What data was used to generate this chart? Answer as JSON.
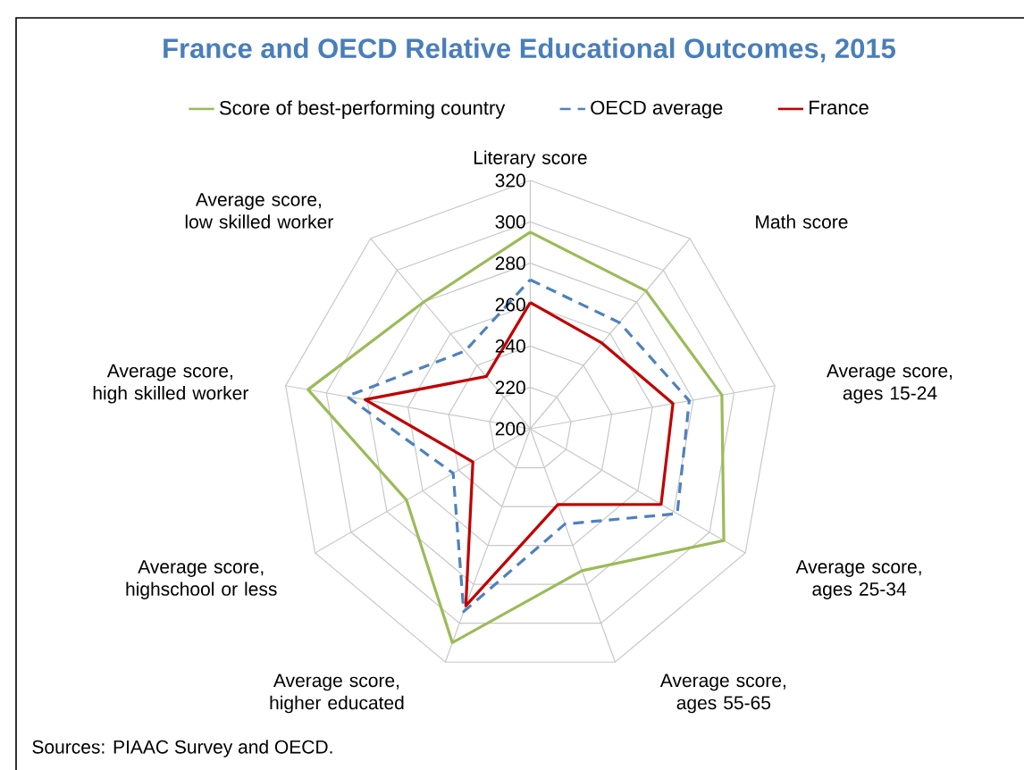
{
  "chart_data": {
    "type": "radar",
    "title": "France and OECD Relative Educational Outcomes, 2015",
    "categories": [
      "Literary score",
      "Math score",
      "Average score,  ages 15-24",
      "Average score, ages 25-34",
      "Average score, ages 55-65",
      "Average score, higher educated",
      "Average score, highschool or less",
      "Average score, high skilled worker",
      "Average score, low skilled worker"
    ],
    "series": [
      {
        "name": "Score of best-performing country",
        "color": "#9bbb59",
        "line_style": "solid",
        "values": [
          295,
          287,
          294,
          308,
          273,
          310,
          269,
          309,
          280
        ]
      },
      {
        "name": "OECD average",
        "color": "#4f81bd",
        "line_style": "dashed",
        "values": [
          272,
          267,
          278,
          282,
          249,
          294,
          243,
          290,
          249
        ]
      },
      {
        "name": "France",
        "color": "#c00000",
        "line_style": "solid",
        "values": [
          261,
          254,
          270,
          273,
          239,
          291,
          232,
          281,
          233
        ]
      }
    ],
    "ylim": [
      200,
      320
    ],
    "yticks": [
      200,
      220,
      240,
      260,
      280,
      300,
      320
    ],
    "grid": true,
    "legend": "top",
    "marker": "none",
    "annotations": [
      "Sources: PIAAC Survey and OECD."
    ]
  }
}
